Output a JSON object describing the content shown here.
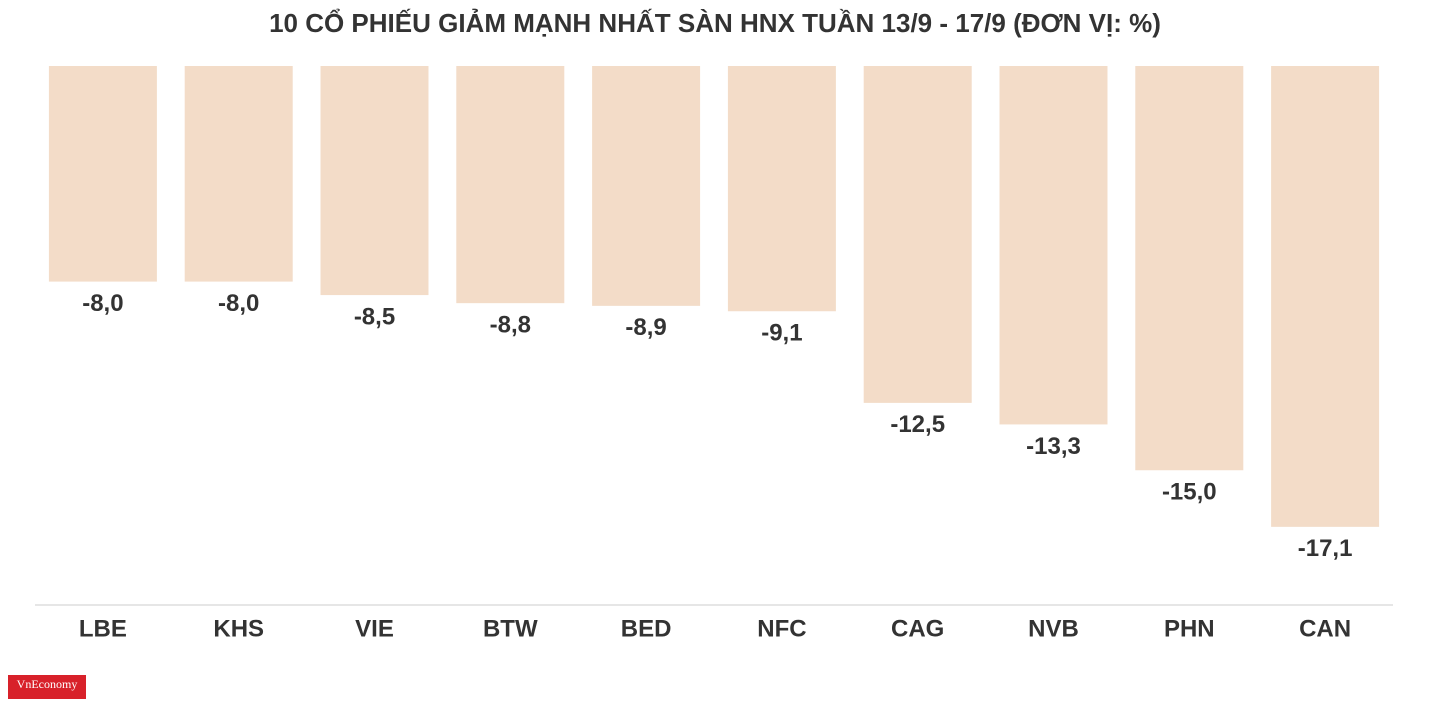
{
  "chart_data": {
    "type": "bar",
    "title": "10 CỔ PHIẾU GIẢM MẠNH NHẤT SÀN HNX TUẦN 13/9 - 17/9 (ĐƠN VỊ: %)",
    "categories": [
      "LBE",
      "KHS",
      "VIE",
      "BTW",
      "BED",
      "NFC",
      "CAG",
      "NVB",
      "PHN",
      "CAN"
    ],
    "values": [
      -8.0,
      -8.0,
      -8.5,
      -8.8,
      -8.9,
      -9.1,
      -12.5,
      -13.3,
      -15.0,
      -17.1
    ],
    "value_labels": [
      "-8,0",
      "-8,0",
      "-8,5",
      "-8,8",
      "-8,9",
      "-9,1",
      "-12,5",
      "-13,3",
      "-15,0",
      "-17,1"
    ],
    "color": "#f3dcc8",
    "ylim": [
      -20,
      0
    ]
  },
  "logo": "VnEconomy"
}
